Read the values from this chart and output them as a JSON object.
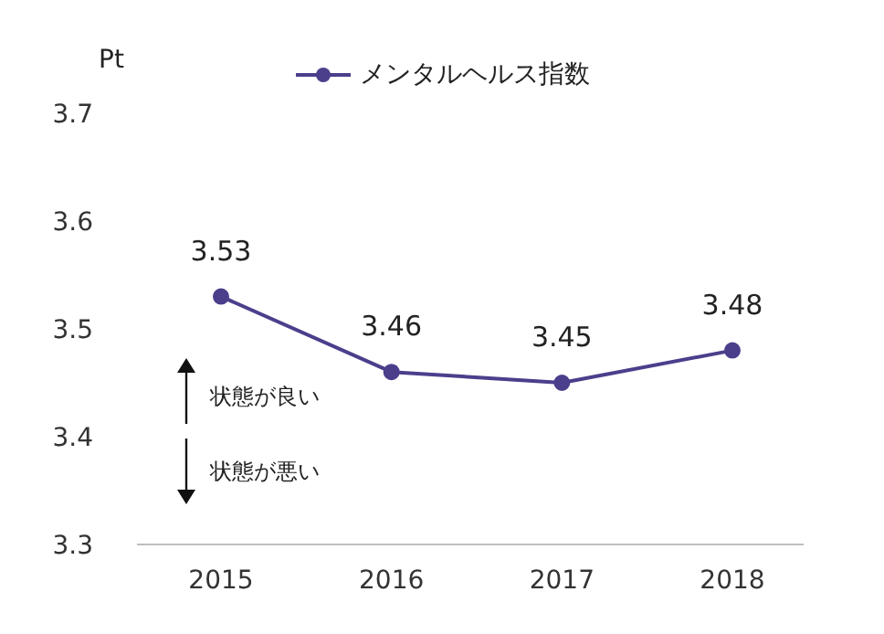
{
  "chart_data": {
    "type": "line",
    "ylabel": "Pt",
    "categories": [
      "2015",
      "2016",
      "2017",
      "2018"
    ],
    "series": [
      {
        "name": "メンタルヘルス指数",
        "color": "#4b3f8c",
        "values": [
          3.53,
          3.46,
          3.45,
          3.48
        ]
      }
    ],
    "ylim": [
      3.3,
      3.7
    ],
    "yticks": [
      3.3,
      3.4,
      3.5,
      3.6,
      3.7
    ],
    "grid": false,
    "legend": "top",
    "marker": "circle",
    "line_style": "solid",
    "data_labels": true,
    "annotations": [
      "状態が良い",
      "状態が悪い"
    ]
  }
}
